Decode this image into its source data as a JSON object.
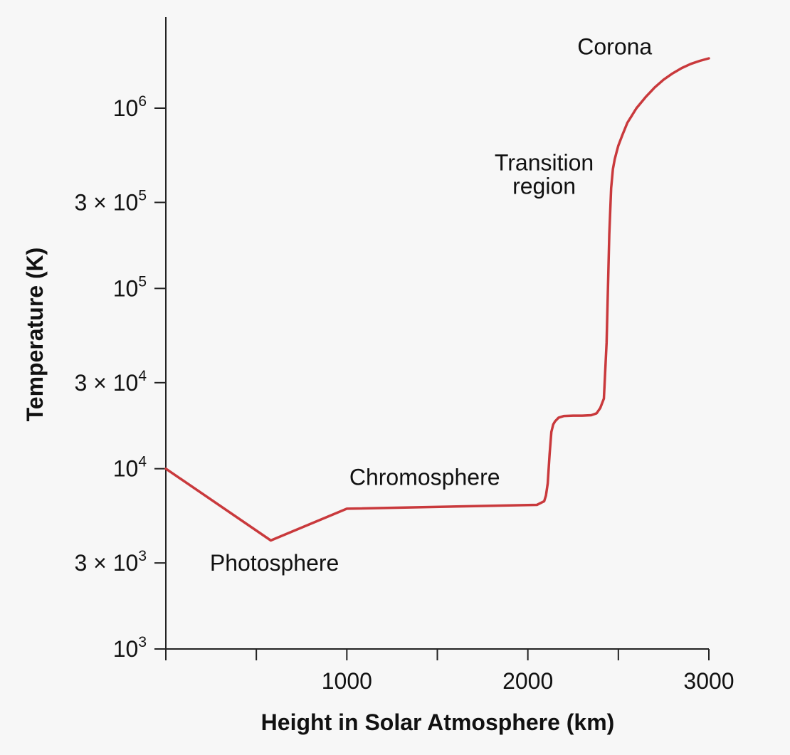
{
  "chart_data": {
    "type": "line",
    "title": "",
    "xlabel": "Height in Solar Atmosphere (km)",
    "ylabel": "Temperature (K)",
    "xscale": "linear",
    "yscale": "log",
    "xlim": [
      0,
      3000
    ],
    "ylim": [
      1000,
      2700000
    ],
    "grid": false,
    "x_ticks": {
      "values": [
        0,
        500,
        1000,
        1500,
        2000,
        2500,
        3000
      ],
      "labels": [
        "",
        "",
        "1000",
        "",
        "2000",
        "",
        "3000"
      ]
    },
    "y_ticks": [
      {
        "value": 1000,
        "prefix": "",
        "base": "10",
        "exp": "3"
      },
      {
        "value": 3000,
        "prefix": "3 × ",
        "base": "10",
        "exp": "3"
      },
      {
        "value": 10000,
        "prefix": "",
        "base": "10",
        "exp": "4"
      },
      {
        "value": 30000,
        "prefix": "3 × ",
        "base": "10",
        "exp": "4"
      },
      {
        "value": 100000,
        "prefix": "",
        "base": "10",
        "exp": "5"
      },
      {
        "value": 300000,
        "prefix": "3 × ",
        "base": "10",
        "exp": "5"
      },
      {
        "value": 1000000,
        "prefix": "",
        "base": "10",
        "exp": "6"
      }
    ],
    "series": [
      {
        "name": "Temperature",
        "color": "#c9393c",
        "x": [
          0,
          580,
          1000,
          2050,
          2090,
          2100,
          2110,
          2120,
          2130,
          2140,
          2150,
          2170,
          2200,
          2250,
          2300,
          2350,
          2380,
          2400,
          2420,
          2435,
          2450,
          2460,
          2470,
          2480,
          2490,
          2500,
          2520,
          2550,
          2600,
          2650,
          2700,
          2750,
          2800,
          2850,
          2900,
          2950,
          3000
        ],
        "y": [
          10000,
          4000,
          6000,
          6300,
          6600,
          7100,
          8300,
          12000,
          16000,
          17600,
          18300,
          19200,
          19600,
          19700,
          19700,
          19800,
          20300,
          21700,
          24500,
          50000,
          200000,
          360000,
          460000,
          520000,
          570000,
          620000,
          700000,
          830000,
          1000000,
          1150000,
          1300000,
          1440000,
          1560000,
          1670000,
          1760000,
          1830000,
          1890000
        ]
      }
    ],
    "annotations": [
      {
        "text": "Corona",
        "x": 2480,
        "y": 2200000
      },
      {
        "text": "Transition",
        "x": 2090,
        "y": 500000
      },
      {
        "text": "region",
        "x": 2090,
        "y": 370000
      },
      {
        "text": "Chromosphere",
        "x": 1430,
        "y": 9000
      },
      {
        "text": "Photosphere",
        "x": 600,
        "y": 3000
      }
    ]
  }
}
